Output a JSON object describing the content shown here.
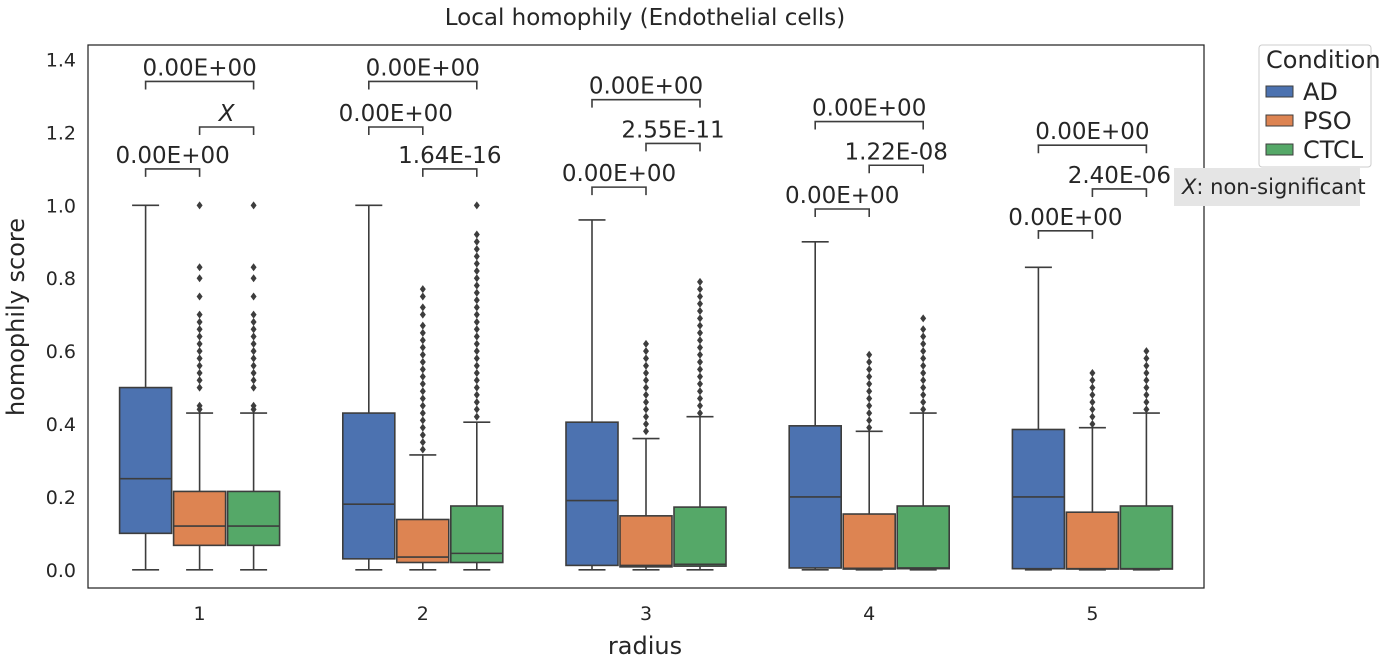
{
  "chart_data": {
    "type": "box",
    "title": "Local homophily (Endothelial cells)",
    "xlabel": "radius",
    "ylabel": "homophily score",
    "categories": [
      "1",
      "2",
      "3",
      "4",
      "5"
    ],
    "ylim": [
      -0.05,
      1.44
    ],
    "yticks": [
      "0.0",
      "0.2",
      "0.4",
      "0.6",
      "0.8",
      "1.0",
      "1.2",
      "1.4"
    ],
    "grid": false,
    "legend": {
      "title": "Condition",
      "position": "outside-right",
      "entries": [
        "AD",
        "PSO",
        "CTCL"
      ]
    },
    "colors": {
      "AD": "#4c72b0",
      "PSO": "#dd8452",
      "CTCL": "#55a868",
      "lines": "#3d3d3d"
    },
    "series": [
      {
        "name": "AD",
        "boxes": [
          {
            "whisker_low": 0.0,
            "q1": 0.1,
            "median": 0.25,
            "q3": 0.5,
            "whisker_high": 1.0,
            "outliers": []
          },
          {
            "whisker_low": 0.0,
            "q1": 0.03,
            "median": 0.18,
            "q3": 0.43,
            "whisker_high": 1.0,
            "outliers": []
          },
          {
            "whisker_low": 0.0,
            "q1": 0.012,
            "median": 0.19,
            "q3": 0.405,
            "whisker_high": 0.96,
            "outliers": []
          },
          {
            "whisker_low": 0.0,
            "q1": 0.005,
            "median": 0.2,
            "q3": 0.395,
            "whisker_high": 0.9,
            "outliers": []
          },
          {
            "whisker_low": 0.0,
            "q1": 0.003,
            "median": 0.2,
            "q3": 0.385,
            "whisker_high": 0.83,
            "outliers": []
          }
        ]
      },
      {
        "name": "PSO",
        "boxes": [
          {
            "whisker_low": 0.0,
            "q1": 0.067,
            "median": 0.12,
            "q3": 0.215,
            "whisker_high": 0.43,
            "outliers": [
              0.44,
              0.45,
              0.5,
              0.52,
              0.54,
              0.56,
              0.58,
              0.6,
              0.62,
              0.64,
              0.66,
              0.68,
              0.7,
              0.75,
              0.8,
              0.83,
              1.0
            ]
          },
          {
            "whisker_low": 0.0,
            "q1": 0.02,
            "median": 0.035,
            "q3": 0.138,
            "whisker_high": 0.315,
            "outliers": [
              0.33,
              0.35,
              0.37,
              0.39,
              0.41,
              0.43,
              0.45,
              0.47,
              0.49,
              0.51,
              0.53,
              0.55,
              0.57,
              0.59,
              0.61,
              0.63,
              0.65,
              0.67,
              0.7,
              0.72,
              0.75,
              0.77
            ]
          },
          {
            "whisker_low": 0.0,
            "q1": 0.008,
            "median": 0.012,
            "q3": 0.148,
            "whisker_high": 0.36,
            "outliers": [
              0.38,
              0.4,
              0.42,
              0.44,
              0.46,
              0.48,
              0.5,
              0.52,
              0.54,
              0.56,
              0.58,
              0.6,
              0.62
            ]
          },
          {
            "whisker_low": 0.0,
            "q1": 0.002,
            "median": 0.004,
            "q3": 0.153,
            "whisker_high": 0.38,
            "outliers": [
              0.39,
              0.41,
              0.43,
              0.45,
              0.47,
              0.49,
              0.51,
              0.53,
              0.55,
              0.57,
              0.59
            ]
          },
          {
            "whisker_low": 0.0,
            "q1": 0.002,
            "median": 0.003,
            "q3": 0.158,
            "whisker_high": 0.39,
            "outliers": [
              0.4,
              0.42,
              0.44,
              0.46,
              0.48,
              0.5,
              0.52,
              0.54
            ]
          }
        ]
      },
      {
        "name": "CTCL",
        "boxes": [
          {
            "whisker_low": 0.0,
            "q1": 0.067,
            "median": 0.12,
            "q3": 0.215,
            "whisker_high": 0.43,
            "outliers": [
              0.44,
              0.45,
              0.5,
              0.52,
              0.54,
              0.56,
              0.58,
              0.6,
              0.62,
              0.64,
              0.66,
              0.68,
              0.7,
              0.75,
              0.8,
              0.83,
              1.0
            ]
          },
          {
            "whisker_low": 0.0,
            "q1": 0.02,
            "median": 0.045,
            "q3": 0.175,
            "whisker_high": 0.405,
            "outliers": [
              0.42,
              0.44,
              0.46,
              0.48,
              0.5,
              0.52,
              0.54,
              0.56,
              0.58,
              0.6,
              0.62,
              0.64,
              0.66,
              0.68,
              0.7,
              0.72,
              0.74,
              0.76,
              0.78,
              0.8,
              0.82,
              0.84,
              0.86,
              0.88,
              0.9,
              0.92,
              1.0
            ]
          },
          {
            "whisker_low": 0.0,
            "q1": 0.01,
            "median": 0.015,
            "q3": 0.172,
            "whisker_high": 0.42,
            "outliers": [
              0.43,
              0.45,
              0.47,
              0.49,
              0.51,
              0.53,
              0.55,
              0.57,
              0.59,
              0.61,
              0.63,
              0.65,
              0.67,
              0.69,
              0.71,
              0.73,
              0.75,
              0.77,
              0.79
            ]
          },
          {
            "whisker_low": 0.0,
            "q1": 0.003,
            "median": 0.005,
            "q3": 0.175,
            "whisker_high": 0.43,
            "outliers": [
              0.44,
              0.46,
              0.48,
              0.5,
              0.52,
              0.54,
              0.56,
              0.58,
              0.6,
              0.62,
              0.64,
              0.66,
              0.69
            ]
          },
          {
            "whisker_low": 0.0,
            "q1": 0.002,
            "median": 0.003,
            "q3": 0.175,
            "whisker_high": 0.43,
            "outliers": [
              0.44,
              0.46,
              0.48,
              0.5,
              0.52,
              0.54,
              0.56,
              0.58,
              0.6
            ]
          }
        ]
      }
    ],
    "annotations": [
      {
        "group": 0,
        "from": "AD",
        "to": "PSO",
        "label": "0.00E+00",
        "y": 1.1
      },
      {
        "group": 0,
        "from": "PSO",
        "to": "CTCL",
        "label": "X",
        "italic": true,
        "y": 1.215
      },
      {
        "group": 0,
        "from": "AD",
        "to": "CTCL",
        "label": "0.00E+00",
        "y": 1.34
      },
      {
        "group": 1,
        "from": "AD",
        "to": "PSO",
        "label": "0.00E+00",
        "y": 1.215
      },
      {
        "group": 1,
        "from": "PSO",
        "to": "CTCL",
        "label": "1.64E-16",
        "y": 1.1
      },
      {
        "group": 1,
        "from": "AD",
        "to": "CTCL",
        "label": "0.00E+00",
        "y": 1.34
      },
      {
        "group": 2,
        "from": "AD",
        "to": "PSO",
        "label": "0.00E+00",
        "y": 1.05
      },
      {
        "group": 2,
        "from": "PSO",
        "to": "CTCL",
        "label": "2.55E-11",
        "y": 1.17
      },
      {
        "group": 2,
        "from": "AD",
        "to": "CTCL",
        "label": "0.00E+00",
        "y": 1.29
      },
      {
        "group": 3,
        "from": "AD",
        "to": "PSO",
        "label": "0.00E+00",
        "y": 0.99
      },
      {
        "group": 3,
        "from": "PSO",
        "to": "CTCL",
        "label": "1.22E-08",
        "y": 1.11
      },
      {
        "group": 3,
        "from": "AD",
        "to": "CTCL",
        "label": "0.00E+00",
        "y": 1.23
      },
      {
        "group": 4,
        "from": "AD",
        "to": "PSO",
        "label": "0.00E+00",
        "y": 0.93
      },
      {
        "group": 4,
        "from": "PSO",
        "to": "CTCL",
        "label": "2.40E-06",
        "y": 1.045
      },
      {
        "group": 4,
        "from": "AD",
        "to": "CTCL",
        "label": "0.00E+00",
        "y": 1.165
      }
    ],
    "note": {
      "symbol": "X",
      "text": ": non-significant"
    }
  }
}
